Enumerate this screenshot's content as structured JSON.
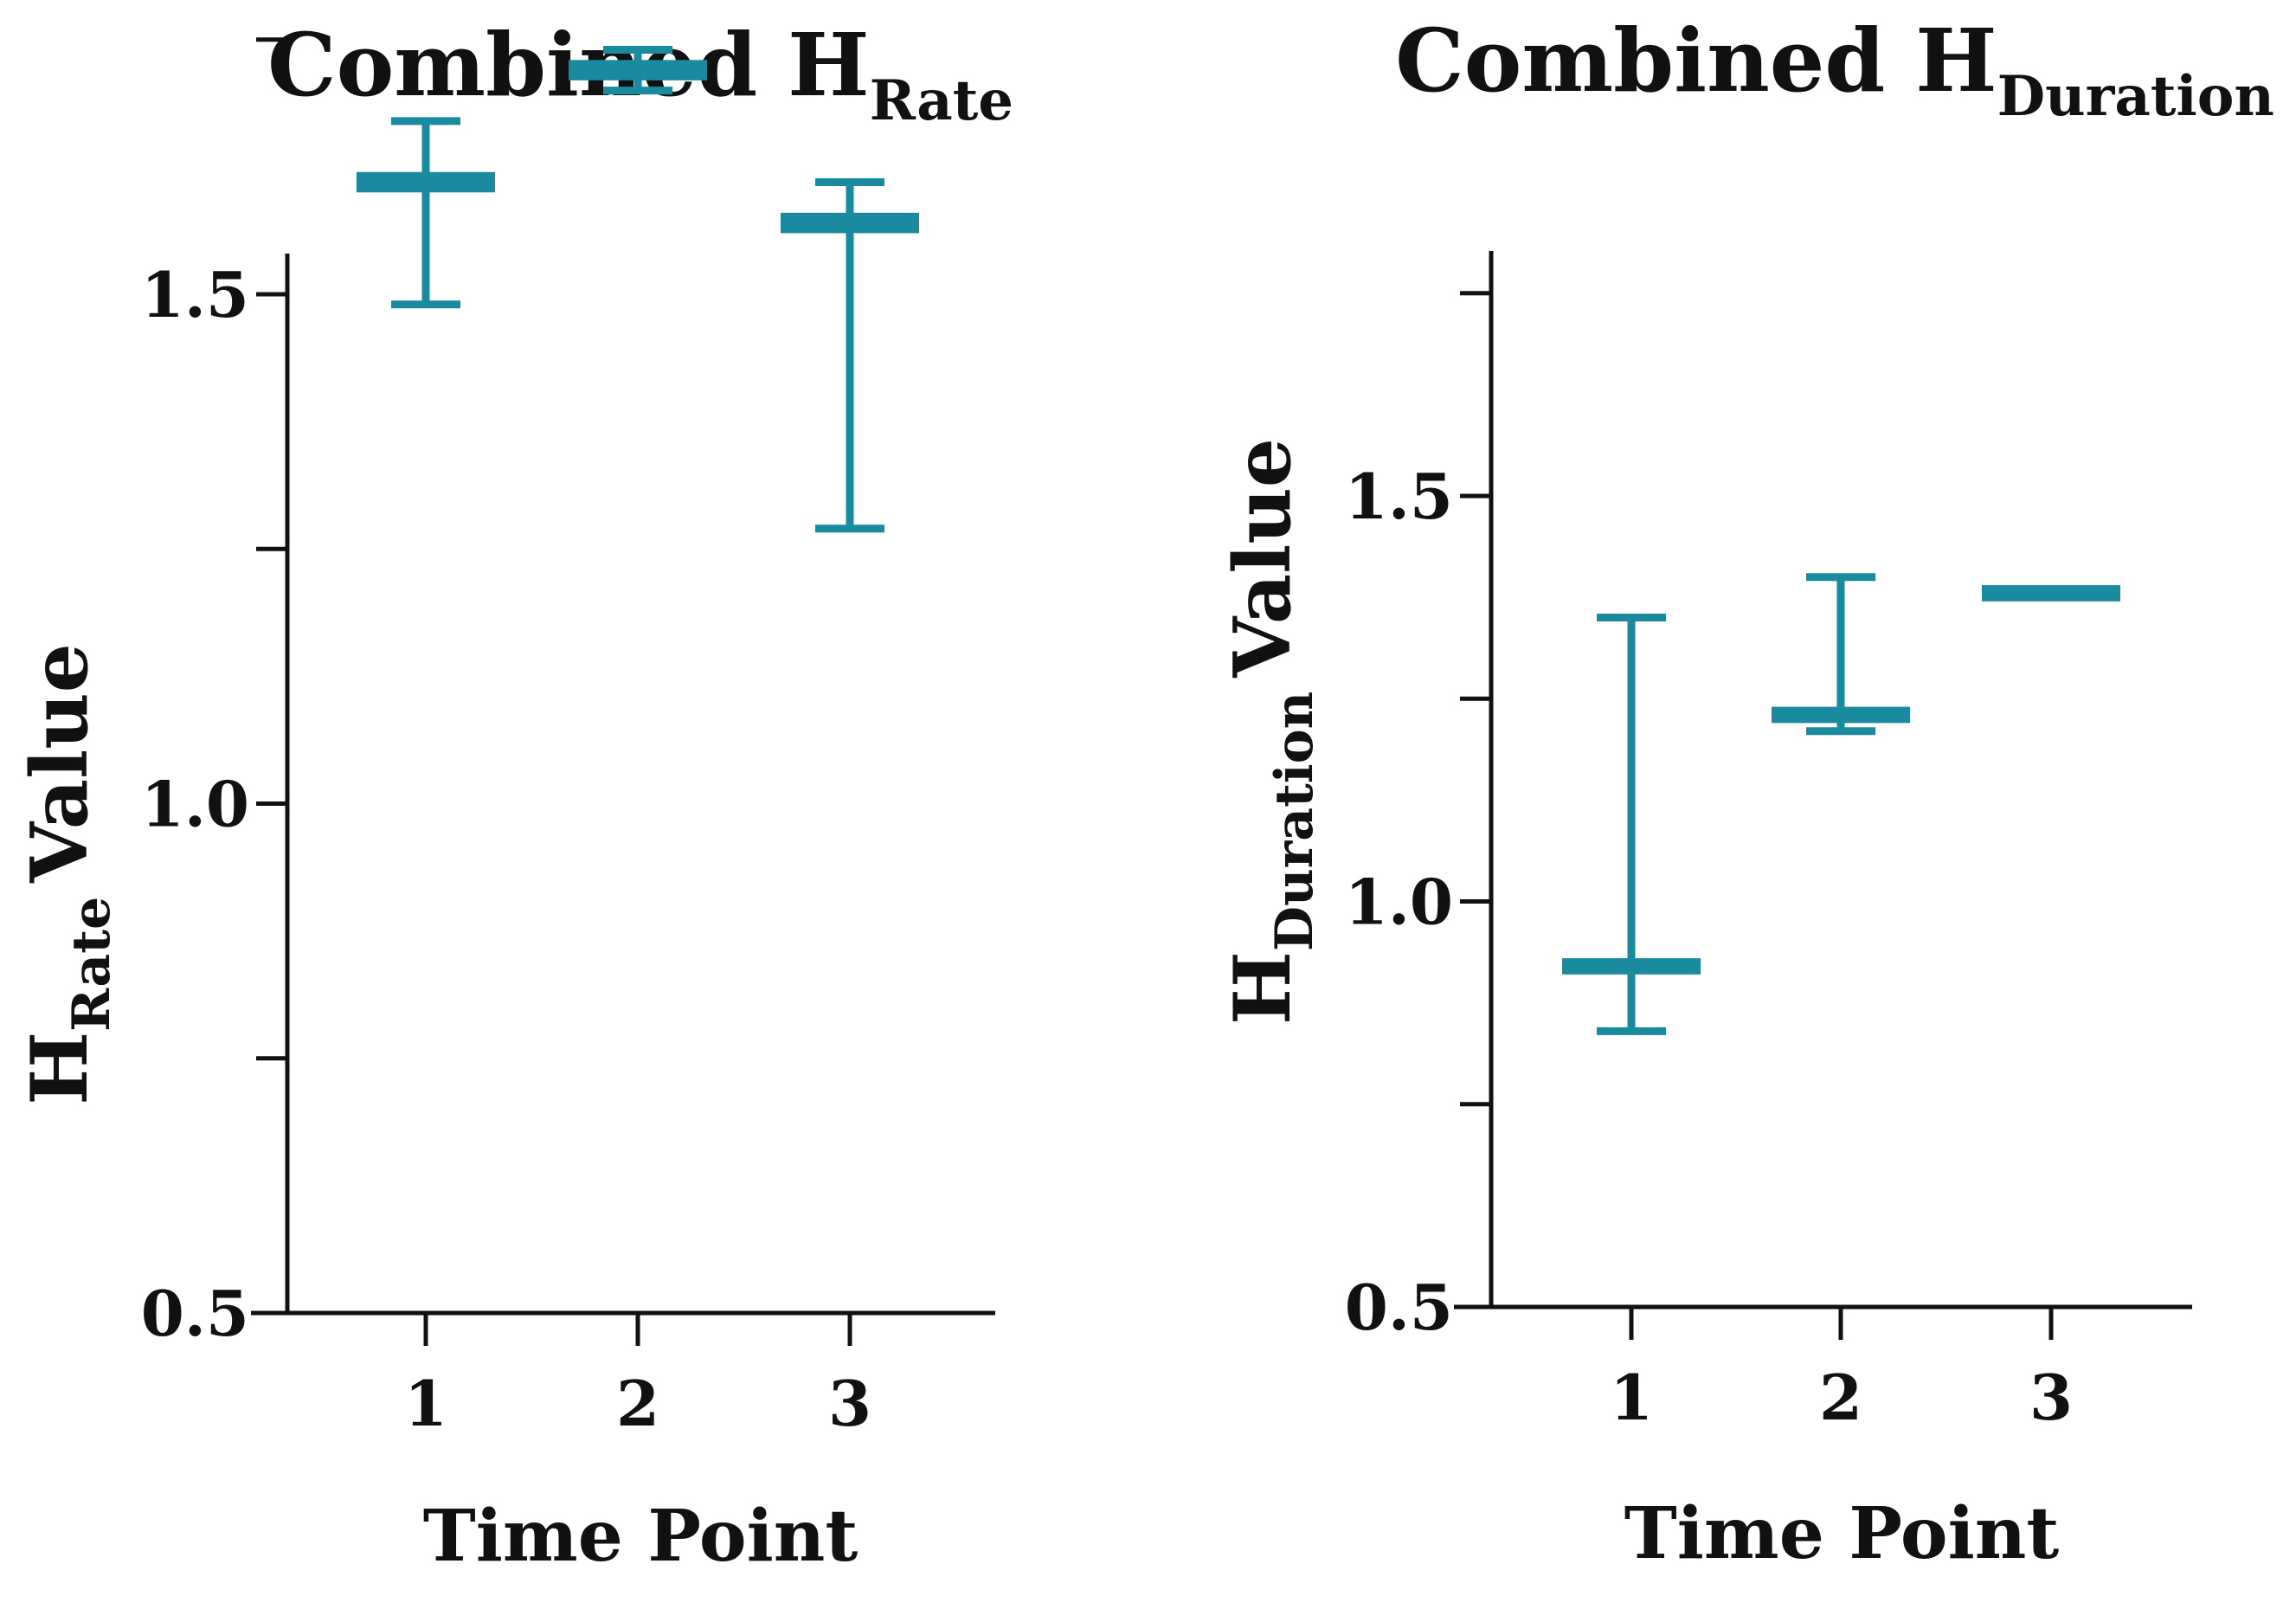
{
  "chart_data": [
    {
      "type": "box",
      "title": "Combined H",
      "title_sub": "Rate",
      "ylabel": "H",
      "ylabel_sub": "Rate",
      "ylabel_suffix": "Value",
      "xlabel": "Time Point",
      "ylim": [
        0.5,
        1.75
      ],
      "yticks": [
        0.5,
        0.75,
        1.0,
        1.25,
        1.5,
        1.75
      ],
      "ytick_labels": [
        "0.5",
        "",
        "1.0",
        "",
        "1.5",
        ""
      ],
      "categories": [
        "1",
        "2",
        "3"
      ],
      "color": "#1a8a9e",
      "series": [
        {
          "x": "1",
          "min": 1.49,
          "max": 1.67,
          "box_low": 1.6,
          "box_high": 1.62
        },
        {
          "x": "2",
          "min": 1.7,
          "max": 1.74,
          "box_low": 1.71,
          "box_high": 1.73
        },
        {
          "x": "3",
          "min": 1.27,
          "max": 1.61,
          "box_low": 1.56,
          "box_high": 1.58
        }
      ]
    },
    {
      "type": "box",
      "title": "Combined H",
      "title_sub": "Duration",
      "ylabel": "H",
      "ylabel_sub": "Duration",
      "ylabel_suffix": "Value",
      "xlabel": "Time Point",
      "ylim": [
        0.5,
        1.75
      ],
      "yticks": [
        0.5,
        0.75,
        1.0,
        1.25,
        1.5,
        1.75
      ],
      "ytick_labels": [
        "0.5",
        "",
        "1.0",
        "",
        "1.5",
        ""
      ],
      "categories": [
        "1",
        "2",
        "3"
      ],
      "color": "#1a8a9e",
      "series": [
        {
          "x": "1",
          "min": 0.84,
          "max": 1.35,
          "box_low": 0.91,
          "box_high": 0.93
        },
        {
          "x": "2",
          "min": 1.21,
          "max": 1.4,
          "box_low": 1.22,
          "box_high": 1.24
        },
        {
          "x": "3",
          "min": null,
          "max": null,
          "box_low": 1.37,
          "box_high": 1.39
        }
      ]
    }
  ]
}
